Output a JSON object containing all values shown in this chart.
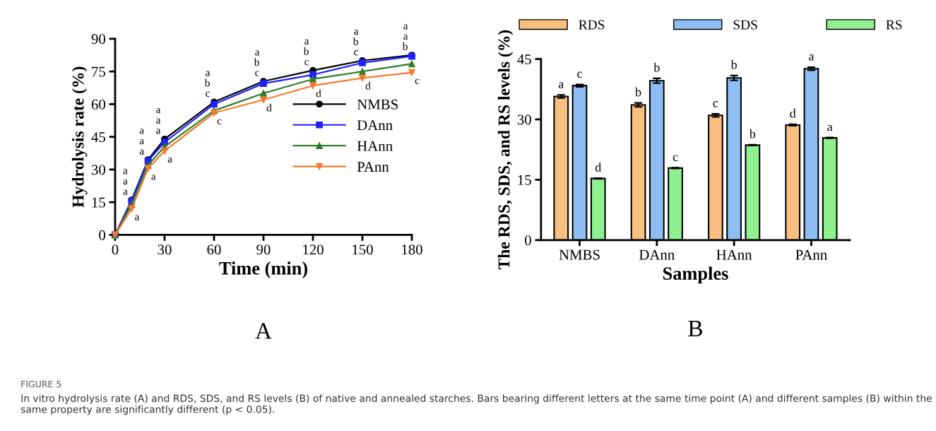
{
  "chart_data": [
    {
      "type": "line",
      "xlabel": "Time (min)",
      "ylabel": "Hydrolysis rate (%)",
      "x": [
        0,
        10,
        20,
        30,
        60,
        90,
        120,
        150,
        180
      ],
      "xlim": [
        0,
        180
      ],
      "xticks": [
        0,
        30,
        60,
        90,
        120,
        150,
        180
      ],
      "ylim": [
        0,
        90
      ],
      "yticks": [
        0,
        15,
        30,
        45,
        60,
        75,
        90
      ],
      "legend": "right",
      "grid": false,
      "annotations": [
        "A"
      ],
      "series": [
        {
          "name": "NMBS",
          "color": "#000000",
          "marker": "circle",
          "values": [
            0,
            16,
            34.5,
            44,
            61,
            70.5,
            75.5,
            80,
            82.5
          ],
          "value_labels": [
            null,
            "a",
            "a",
            "a",
            "a",
            "a",
            "a",
            "a",
            "a"
          ]
        },
        {
          "name": "DAnn",
          "color": "#1f1fff",
          "marker": "square",
          "values": [
            0,
            15.5,
            34,
            42.5,
            60,
            69.5,
            73.5,
            79,
            82
          ],
          "value_labels": [
            null,
            "a",
            "a",
            "a",
            "b",
            "b",
            "b",
            "b",
            "a"
          ]
        },
        {
          "name": "HAnn",
          "color": "#2f7d2a",
          "marker": "triangle",
          "values": [
            0,
            14,
            32,
            40.5,
            57,
            65,
            71.5,
            75,
            78.5
          ],
          "value_labels": [
            null,
            "a",
            "a",
            "a",
            "c",
            "c",
            "c",
            "c",
            "b"
          ]
        },
        {
          "name": "PAnn",
          "color": "#f47b2a",
          "marker": "triangle-down",
          "values": [
            0,
            12,
            30.5,
            38.5,
            56,
            62,
            68.5,
            72,
            74.5
          ],
          "value_labels": [
            null,
            "a",
            "a",
            "a",
            "c",
            "d",
            "d",
            "d",
            "c"
          ]
        }
      ]
    },
    {
      "type": "bar",
      "xlabel": "Samples",
      "ylabel": "The RDS, SDS, and RS levels (%)",
      "categories": [
        "NMBS",
        "DAnn",
        "HAnn",
        "PAnn"
      ],
      "ylim": [
        0,
        45
      ],
      "yticks": [
        0,
        15,
        30,
        45
      ],
      "legend": "top",
      "grid": false,
      "annotations": [
        "B",
        "FIGURE 5",
        "In vitro hydrolysis rate (A) and RDS, SDS, and RS levels (B) of native and annealed starches. Bars bearing different letters at the same time point (A) and different samples (B) within the same property are significantly different (p < 0.05)."
      ],
      "series": [
        {
          "name": "RDS",
          "color": "#f9bf7f",
          "values": [
            35.7,
            33.6,
            31.0,
            28.6
          ],
          "errors": [
            0.4,
            0.5,
            0.4,
            0.2
          ],
          "value_labels": [
            "a",
            "b",
            "c",
            "d"
          ]
        },
        {
          "name": "SDS",
          "color": "#8dbdf2",
          "values": [
            38.4,
            39.6,
            40.3,
            42.6
          ],
          "errors": [
            0.3,
            0.6,
            0.6,
            0.4
          ],
          "value_labels": [
            "c",
            "b",
            "b",
            "a"
          ]
        },
        {
          "name": "RS",
          "color": "#8ff08f",
          "values": [
            15.3,
            17.9,
            23.6,
            25.4
          ],
          "errors": [
            0.1,
            0.1,
            0.1,
            0.1
          ],
          "value_labels": [
            "d",
            "c",
            "b",
            "a"
          ]
        }
      ]
    }
  ]
}
